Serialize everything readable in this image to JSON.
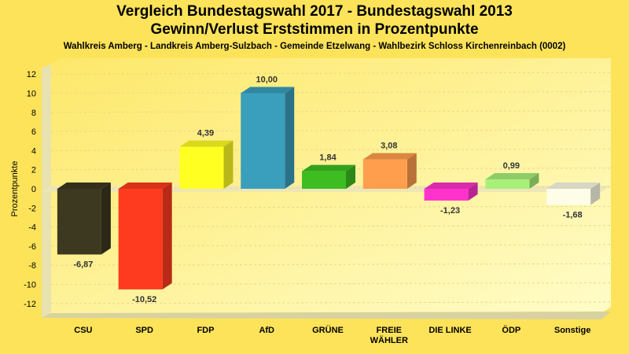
{
  "title_line1": "Vergleich Bundestagswahl 2017 - Bundestagswahl 2013",
  "title_line2": "Gewinn/Verlust Erststimmen in Prozentpunkte",
  "subtitle": "Wahlkreis Amberg - Landkreis Amberg-Sulzbach - Gemeinde Etzelwang - Wahlbezirk Schloss Kirchenreinbach (0002)",
  "chart_data": {
    "type": "bar",
    "title": "Vergleich Bundestagswahl 2017 - Bundestagswahl 2013",
    "subtitle": "Gewinn/Verlust Erststimmen in Prozentpunkte",
    "xlabel": "",
    "ylabel": "Prozentpunkte",
    "ylim": [
      -13,
      13
    ],
    "yticks": [
      -12,
      -10,
      -8,
      -6,
      -4,
      -2,
      0,
      2,
      4,
      6,
      8,
      10,
      12
    ],
    "grid": true,
    "categories": [
      [
        "CSU"
      ],
      [
        "SPD"
      ],
      [
        "FDP"
      ],
      [
        "AfD"
      ],
      [
        "GRÜNE"
      ],
      [
        "FREIE",
        "WÄHLER"
      ],
      [
        "DIE LINKE"
      ],
      [
        "ÖDP"
      ],
      [
        "Sonstige"
      ]
    ],
    "values": [
      -6.87,
      -10.52,
      4.39,
      10.0,
      1.84,
      3.08,
      -1.23,
      0.99,
      -1.68
    ],
    "value_labels": [
      "-6,87",
      "-10,52",
      "4,39",
      "10,00",
      "1,84",
      "3,08",
      "-1,23",
      "0,99",
      "-1,68"
    ],
    "colors": [
      "#3d3820",
      "#ff3b1f",
      "#ffff22",
      "#3a9fbd",
      "#3dbd22",
      "#ff9f4d",
      "#ff33cc",
      "#a8f07a",
      "#fdfde8"
    ]
  }
}
